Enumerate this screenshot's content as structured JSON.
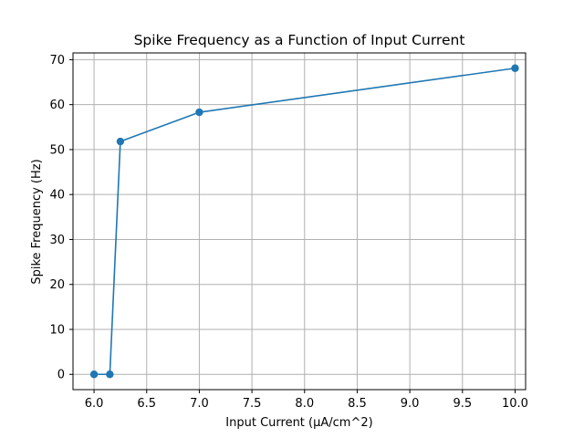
{
  "chart_data": {
    "type": "line",
    "title": "Spike Frequency as a Function of Input Current",
    "xlabel": "Input Current (µA/cm^2)",
    "ylabel": "Spike Frequency (Hz)",
    "xlim": [
      5.8,
      10.1
    ],
    "ylim": [
      -3.4,
      71.5
    ],
    "xticks": [
      6.0,
      6.5,
      7.0,
      7.5,
      8.0,
      8.5,
      9.0,
      9.5,
      10.0
    ],
    "xtick_labels": [
      "6.0",
      "6.5",
      "7.0",
      "7.5",
      "8.0",
      "8.5",
      "9.0",
      "9.5",
      "10.0"
    ],
    "yticks": [
      0,
      10,
      20,
      30,
      40,
      50,
      60,
      70
    ],
    "ytick_labels": [
      "0",
      "10",
      "20",
      "30",
      "40",
      "50",
      "60",
      "70"
    ],
    "grid": true,
    "series": [
      {
        "color": "#1f77b4",
        "marker": "circle",
        "x": [
          6.0,
          6.15,
          6.25,
          7.0,
          10.0
        ],
        "y": [
          0,
          0,
          51.8,
          58.3,
          68.1
        ]
      }
    ]
  }
}
